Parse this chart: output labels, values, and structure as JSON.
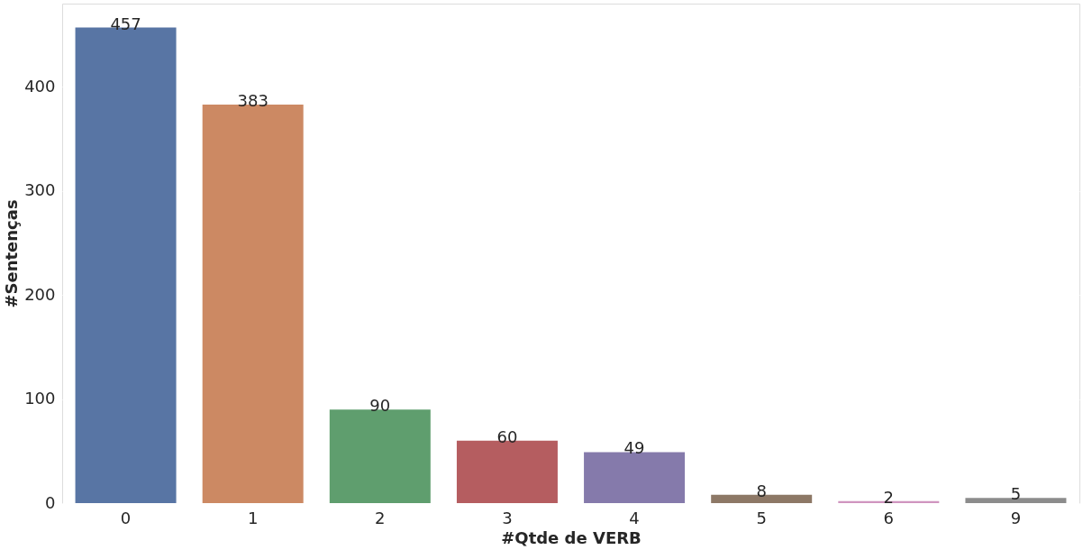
{
  "chart_data": {
    "type": "bar",
    "xlabel": "#Qtde de VERB",
    "ylabel": "#Sentenças",
    "categories": [
      "0",
      "1",
      "2",
      "3",
      "4",
      "5",
      "6",
      "9"
    ],
    "values": [
      457,
      383,
      90,
      60,
      49,
      8,
      2,
      5
    ],
    "colors": [
      "#5875a4",
      "#cc8963",
      "#5f9e6e",
      "#b55d60",
      "#857aab",
      "#8d7866",
      "#d095bf",
      "#8c8c8c"
    ],
    "ylim": [
      0,
      480
    ],
    "yticks": [
      0,
      100,
      200,
      300,
      400
    ],
    "grid": "y",
    "data_labels": true,
    "legend": false
  }
}
